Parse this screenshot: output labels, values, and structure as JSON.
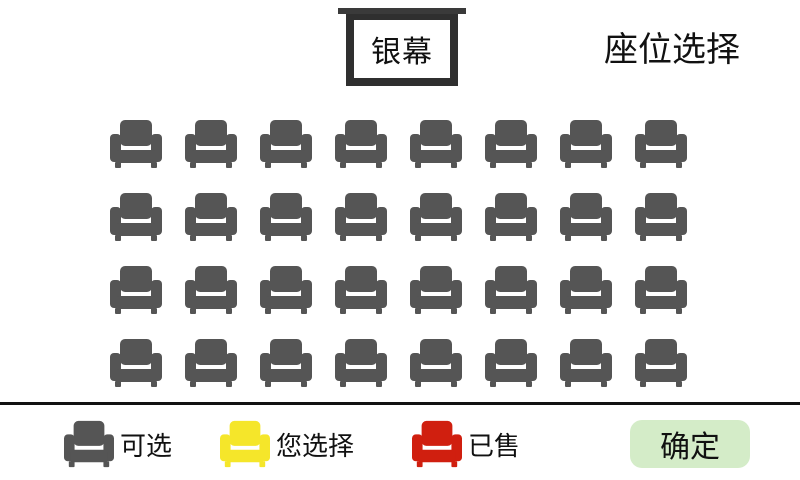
{
  "screen": {
    "label": "银幕"
  },
  "title": "座位选择",
  "seats": {
    "rows": 4,
    "cols": 8,
    "states": [
      [
        "available",
        "available",
        "available",
        "available",
        "available",
        "available",
        "available",
        "available"
      ],
      [
        "available",
        "available",
        "available",
        "available",
        "available",
        "available",
        "available",
        "available"
      ],
      [
        "available",
        "available",
        "available",
        "available",
        "available",
        "available",
        "available",
        "available"
      ],
      [
        "available",
        "available",
        "available",
        "available",
        "available",
        "available",
        "available",
        "available"
      ]
    ]
  },
  "colors": {
    "available": "#555555",
    "selected": "#f5e62a",
    "sold": "#d01f0f",
    "confirm_bg": "#d4ecc8"
  },
  "legend": {
    "available": "可选",
    "selected": "您选择",
    "sold": "已售"
  },
  "confirm_label": "确定"
}
